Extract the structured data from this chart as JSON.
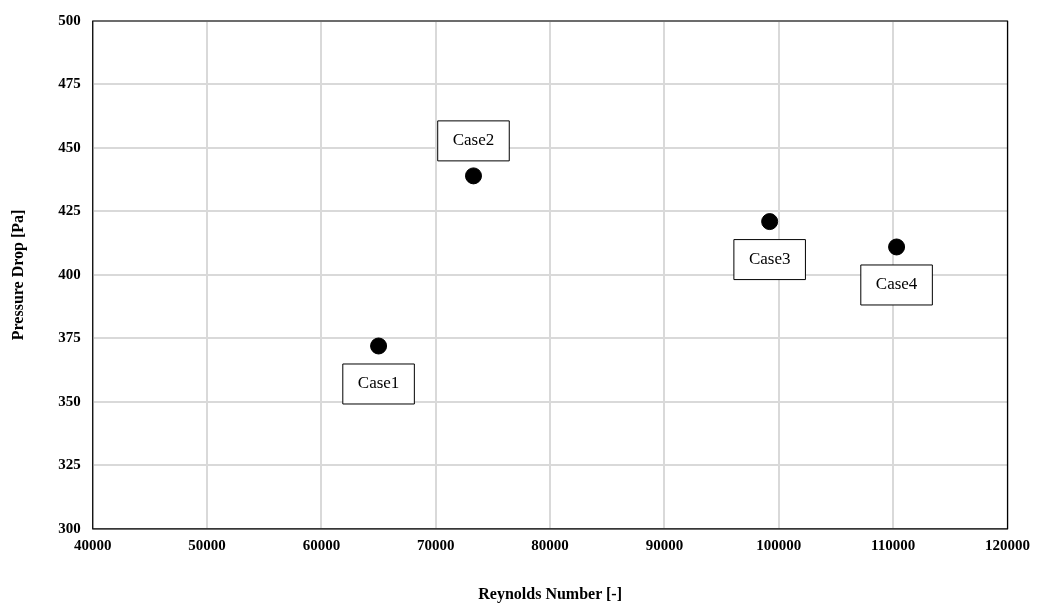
{
  "chart_data": {
    "type": "scatter",
    "xlabel": "Reynolds Number [-]",
    "ylabel": "Pressure Drop [Pa]",
    "x": [
      65000,
      73300,
      99200,
      110300
    ],
    "series": [
      {
        "color": "#000000",
        "values": [
          372,
          439,
          421,
          411
        ]
      }
    ],
    "xlim": [
      40000,
      120000
    ],
    "xticks": [
      40000,
      50000,
      60000,
      70000,
      80000,
      90000,
      100000,
      110000,
      120000
    ],
    "ylim": [
      300,
      500
    ],
    "yticks": [
      300,
      325,
      350,
      375,
      400,
      425,
      450,
      475,
      500
    ],
    "grid": true,
    "legend": false,
    "marker": "circle",
    "annotations": [
      {
        "text": "Case1",
        "x": 65000,
        "y": 372
      },
      {
        "text": "Case2",
        "x": 73300,
        "y": 439
      },
      {
        "text": "Case3",
        "x": 99200,
        "y": 421
      },
      {
        "text": "Case4",
        "x": 110300,
        "y": 411
      }
    ]
  }
}
